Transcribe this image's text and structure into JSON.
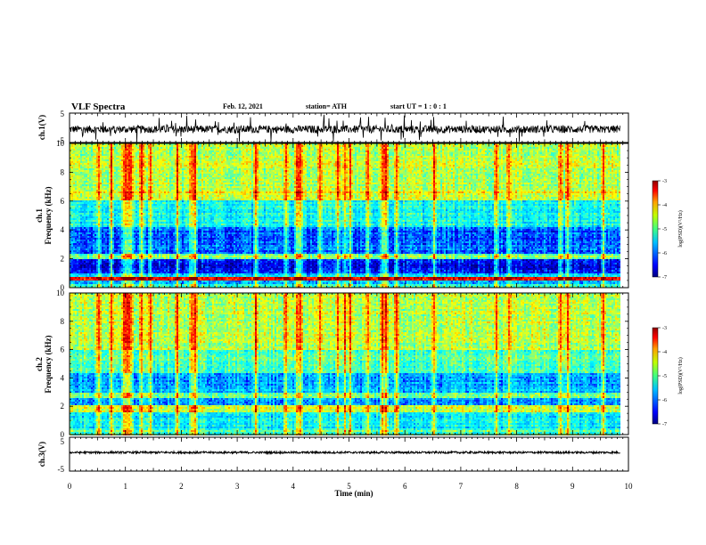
{
  "header": {
    "title": "VLF Spectra",
    "date": "Feb. 12, 2021",
    "station": "station= ATH",
    "start": "start  UT =  1 : 0  : 1"
  },
  "chart_data": [
    {
      "type": "line",
      "name": "ch1-waveform",
      "ylabel": "ch.1(V)",
      "ylim": [
        -5,
        5
      ],
      "yticks": [
        "5",
        "-5"
      ],
      "xlim": [
        0,
        10
      ],
      "baseline_v": -0.5,
      "noise_amplitude_v": 1.3
    },
    {
      "type": "heatmap",
      "name": "ch1-spectrogram",
      "ylabel_line1": "ch.1",
      "ylabel_line2": "Frequency (kHz)",
      "ylim": [
        0,
        10
      ],
      "yticks": [
        "0",
        "2",
        "4",
        "6",
        "8",
        "10"
      ],
      "xlim": [
        0,
        9.85
      ],
      "colorbar": {
        "title": "log(PSD)(V²/Hz)",
        "range": [
          -7,
          -3
        ],
        "ticks": [
          "-3",
          "-4",
          "-5",
          "-6",
          "-7"
        ]
      }
    },
    {
      "type": "heatmap",
      "name": "ch2-spectrogram",
      "ylabel_line1": "ch.2",
      "ylabel_line2": "Frequency (kHz)",
      "ylim": [
        0,
        10
      ],
      "yticks": [
        "0",
        "2",
        "4",
        "6",
        "8",
        "10"
      ],
      "xlim": [
        0,
        9.85
      ],
      "colorbar": {
        "title": "log(PSD)(V²/Hz)",
        "range": [
          -7,
          -3
        ],
        "ticks": [
          "-3",
          "-4",
          "-5",
          "-6",
          "-7"
        ]
      }
    },
    {
      "type": "line",
      "name": "ch3-waveform",
      "ylabel": "ch.3(V)",
      "ylim": [
        -5,
        5
      ],
      "yticks": [
        "5",
        "-5"
      ],
      "xlim": [
        0,
        10
      ],
      "baseline_v": 0.5,
      "noise_amplitude_v": 0.3
    }
  ],
  "xaxis": {
    "label": "Time (min)",
    "ticks": [
      "0",
      "1",
      "2",
      "3",
      "4",
      "5",
      "6",
      "7",
      "8",
      "9",
      "10"
    ],
    "range": [
      0,
      10
    ]
  },
  "colors": {
    "jet": [
      "#000080",
      "#0000ff",
      "#00a0ff",
      "#00ffff",
      "#80ff80",
      "#ffff00",
      "#ff8000",
      "#ff0000",
      "#800000"
    ]
  }
}
